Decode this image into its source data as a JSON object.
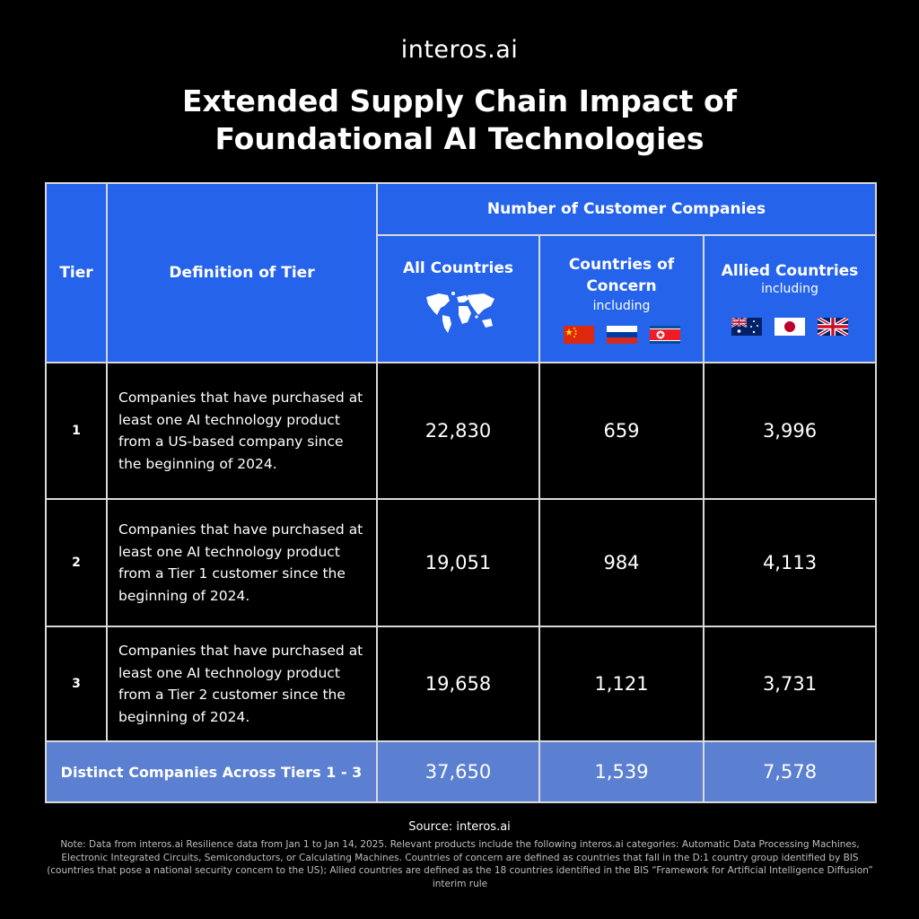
{
  "brand": {
    "logo": "interos.ai"
  },
  "title": {
    "line1": "Extended Supply Chain Impact of",
    "line2": "Foundational AI Technologies"
  },
  "table": {
    "header": {
      "tier": "Tier",
      "definition": "Definition of Tier",
      "group": "Number of Customer Companies",
      "all_countries": "All Countries",
      "concern": "Countries of Concern",
      "concern_sub": "including",
      "allied": "Allied Countries",
      "allied_sub": "including",
      "concern_flags": [
        "china-flag-icon",
        "russia-flag-icon",
        "north-korea-flag-icon"
      ],
      "allied_flags": [
        "australia-flag-icon",
        "japan-flag-icon",
        "uk-flag-icon"
      ],
      "all_icon": "world-map-icon"
    },
    "rows": [
      {
        "tier": "1",
        "definition": "Companies that have purchased at least one AI technology product from a US-based company since the beginning of 2024.",
        "all": "22,830",
        "concern": "659",
        "allied": "3,996"
      },
      {
        "tier": "2",
        "definition": "Companies that have purchased at least one AI technology product from a Tier 1 customer since the beginning of 2024.",
        "all": "19,051",
        "concern": "984",
        "allied": "4,113"
      },
      {
        "tier": "3",
        "definition": "Companies that have purchased at least one AI technology product from a Tier 2 customer since the beginning of 2024.",
        "all": "19,658",
        "concern": "1,121",
        "allied": "3,731"
      }
    ],
    "footer": {
      "label": "Distinct Companies Across Tiers 1 - 3",
      "all": "37,650",
      "concern": "1,539",
      "allied": "7,578"
    }
  },
  "source": "Source: interos.ai",
  "note": "Note: Data from interos.ai Resilience data from Jan 1 to Jan 14, 2025. Relevant products include the following interos.ai categories: Automatic Data Processing Machines, Electronic Integrated Circuits, Semiconductors, or Calculating Machines.  Countries of concern are defined as countries that fall in the D:1 country group identified by BIS (countries that pose a national security concern to the US); Allied countries are defined as the 18 countries identified in the BIS “Framework for Artificial Intelligence Diffusion” interim rule",
  "colors": {
    "header_blue": "#2563eb",
    "footer_blue": "#5b7fd1",
    "background": "#000000"
  }
}
